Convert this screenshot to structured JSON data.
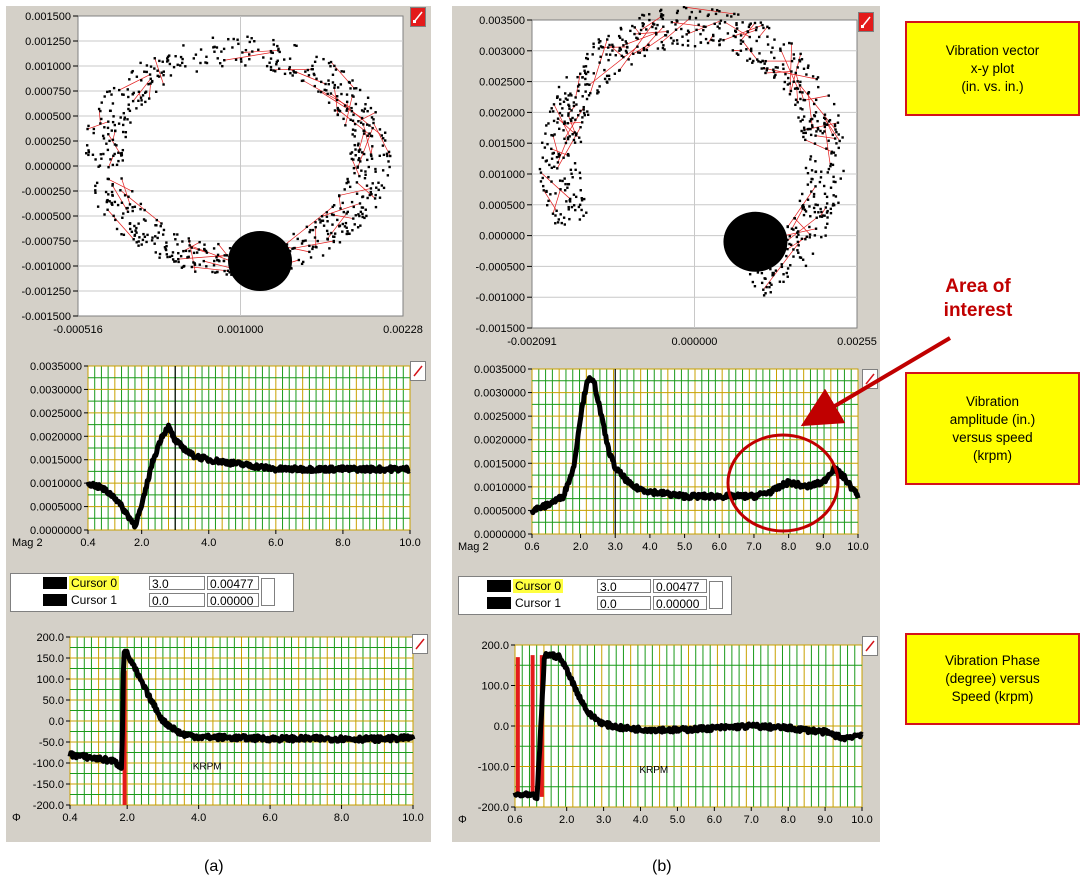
{
  "captions": {
    "a": "(a)",
    "b": "(b)"
  },
  "notes": {
    "xy": "Vibration vector\nx-y plot\n(in. vs. in.)",
    "amp": "Vibration\namplitude (in.)\nversus speed\n(krpm)",
    "phase": "Vibration Phase\n(degree) versus\nSpeed (krpm)"
  },
  "area_of_interest": "Area of\ninterest",
  "colors": {
    "trace": "#000000",
    "red": "#e31b1b",
    "grid_green": "#1a9a1a",
    "grid_gold": "#c8a000",
    "grid_gray": "#c8c8c8",
    "panel": "#d4d0c8",
    "note_bg": "#ffff00",
    "arrow": "#c00000"
  },
  "legend": {
    "rows": [
      {
        "name": "Cursor 0",
        "x": "3.0",
        "y": "0.00477"
      },
      {
        "name": "Cursor 1",
        "x": "0.0",
        "y": "0.00000"
      }
    ]
  },
  "chart_data": [
    {
      "id": "a-xy",
      "type": "scatter",
      "yticks": [
        "0.001500",
        "0.001250",
        "0.001000",
        "0.000750",
        "0.000500",
        "0.000250",
        "0.000000",
        "-0.000250",
        "-0.000500",
        "-0.000750",
        "-0.001000",
        "-0.001250",
        "-0.001500"
      ],
      "xticks": [
        "-0.000516",
        "0.001000",
        "0.00228"
      ],
      "xlim": [
        -0.000516,
        0.00228
      ],
      "ylim": [
        -0.0015,
        0.0015
      ],
      "grid": true,
      "shape": "ring",
      "center": [
        0.00085,
        0.0001
      ],
      "radius": [
        0.00115,
        0.00105
      ],
      "cluster": {
        "x": 0.00105,
        "y": -0.00095
      }
    },
    {
      "id": "b-xy",
      "type": "scatter",
      "yticks": [
        "0.003500",
        "0.003000",
        "0.002500",
        "0.002000",
        "0.001500",
        "0.001000",
        "0.000500",
        "0.000000",
        "-0.000500",
        "-0.001000",
        "-0.001500"
      ],
      "xticks": [
        "-0.002091",
        "0.000000",
        "0.00255"
      ],
      "xlim": [
        -0.002091,
        0.00255
      ],
      "ylim": [
        -0.0015,
        0.0035
      ],
      "grid": true,
      "shape": "arc",
      "center": [
        0.0002,
        0.0012
      ],
      "radius": [
        0.0019,
        0.0022
      ],
      "cluster": {
        "x": 0.0011,
        "y": -0.0001
      }
    },
    {
      "id": "a-mag",
      "type": "line",
      "series_label": "Mag 2",
      "yticks": [
        "0.0035000",
        "0.0030000",
        "0.0025000",
        "0.0020000",
        "0.0015000",
        "0.0010000",
        "0.0005000",
        "0.0000000"
      ],
      "xticks": [
        "0.4",
        "2.0",
        "4.0",
        "6.0",
        "8.0",
        "10.0"
      ],
      "xlim": [
        0.4,
        10.0
      ],
      "ylim": [
        0,
        0.0035
      ],
      "grid": true,
      "cursor_x": 3.0,
      "x": [
        0.4,
        0.8,
        1.2,
        1.5,
        1.8,
        2.0,
        2.3,
        2.6,
        2.8,
        3.0,
        3.5,
        4.0,
        5.0,
        6.0,
        7.0,
        8.0,
        9.0,
        10.0
      ],
      "y": [
        0.001,
        0.0009,
        0.0007,
        0.0004,
        0.0001,
        0.0005,
        0.0014,
        0.002,
        0.0022,
        0.0019,
        0.0016,
        0.0015,
        0.0014,
        0.0013,
        0.0013,
        0.0013,
        0.0013,
        0.0013
      ]
    },
    {
      "id": "b-mag",
      "type": "line",
      "series_label": "Mag 2",
      "yticks": [
        "0.0035000",
        "0.0030000",
        "0.0025000",
        "0.0020000",
        "0.0015000",
        "0.0010000",
        "0.0005000",
        "0.0000000"
      ],
      "xticks": [
        "0.6",
        "2.0",
        "3.0",
        "4.0",
        "5.0",
        "6.0",
        "7.0",
        "8.0",
        "9.0",
        "10.0"
      ],
      "xlim": [
        0.6,
        10.0
      ],
      "ylim": [
        0,
        0.0035
      ],
      "grid": true,
      "cursor_x": 3.0,
      "x": [
        0.6,
        1.0,
        1.5,
        1.8,
        2.0,
        2.2,
        2.4,
        2.6,
        2.8,
        3.0,
        3.5,
        4.0,
        5.0,
        6.0,
        7.0,
        7.5,
        8.0,
        8.5,
        9.0,
        9.3,
        9.6,
        10.0
      ],
      "y": [
        0.0005,
        0.0006,
        0.0008,
        0.0014,
        0.0025,
        0.0033,
        0.0032,
        0.0025,
        0.0018,
        0.0014,
        0.001,
        0.0009,
        0.0008,
        0.0008,
        0.0008,
        0.0009,
        0.0011,
        0.001,
        0.0011,
        0.0014,
        0.0012,
        0.0008
      ]
    },
    {
      "id": "a-phase",
      "type": "line",
      "series_label": "Φ",
      "inner_label": "KRPM",
      "yticks": [
        "200.0",
        "150.0",
        "100.0",
        "50.0",
        "0.0",
        "-50.0",
        "-100.0",
        "-150.0",
        "-200.0"
      ],
      "xticks": [
        "0.4",
        "2.0",
        "4.0",
        "6.0",
        "8.0",
        "10.0"
      ],
      "xlim": [
        0.4,
        10.0
      ],
      "ylim": [
        -200,
        200
      ],
      "grid": true,
      "x": [
        0.4,
        0.8,
        1.2,
        1.6,
        1.85,
        1.9,
        2.0,
        2.3,
        2.6,
        3.0,
        3.5,
        4.0,
        5.0,
        6.0,
        7.0,
        8.0,
        9.0,
        10.0
      ],
      "y": [
        -80,
        -85,
        -90,
        -95,
        -110,
        170,
        160,
        110,
        60,
        0,
        -30,
        -38,
        -40,
        -42,
        -42,
        -42,
        -43,
        -40
      ],
      "red_segments": [
        [
          1.9,
          -200,
          1.9,
          120
        ]
      ]
    },
    {
      "id": "b-phase",
      "type": "line",
      "series_label": "Φ",
      "inner_label": "KRPM",
      "yticks": [
        "200.0",
        "100.0",
        "0.0",
        "-100.0",
        "-200.0"
      ],
      "xticks": [
        "0.6",
        "2.0",
        "3.0",
        "4.0",
        "5.0",
        "6.0",
        "7.0",
        "8.0",
        "9.0",
        "10.0"
      ],
      "xlim": [
        0.6,
        10.0
      ],
      "ylim": [
        -200,
        200
      ],
      "grid": true,
      "x": [
        0.6,
        0.8,
        1.0,
        1.2,
        1.4,
        1.6,
        1.8,
        2.0,
        2.3,
        2.6,
        3.0,
        3.5,
        4.0,
        5.0,
        6.0,
        7.0,
        8.0,
        9.0,
        9.5,
        10.0
      ],
      "y": [
        -170,
        -170,
        -172,
        -175,
        175,
        175,
        170,
        140,
        80,
        30,
        5,
        -5,
        -8,
        -10,
        -5,
        0,
        -5,
        -15,
        -30,
        -20
      ],
      "red_segments": [
        [
          0.65,
          -175,
          0.65,
          170
        ],
        [
          1.3,
          -175,
          1.3,
          175
        ],
        [
          1.05,
          -175,
          1.05,
          175
        ]
      ]
    }
  ]
}
